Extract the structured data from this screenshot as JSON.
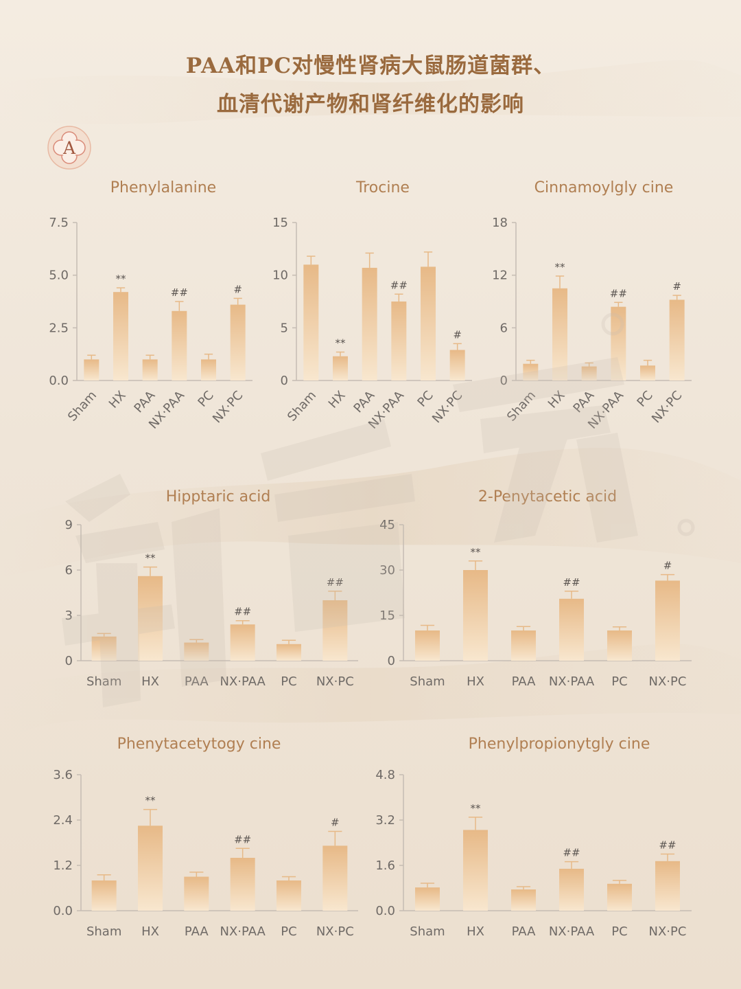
{
  "title": {
    "line1": "PAA和PC对慢性肾病大鼠肠道菌群、",
    "line2": "血清代谢产物和肾纤维化的影响"
  },
  "badge": {
    "letter": "A"
  },
  "colors": {
    "bar_top": "#e7b987",
    "bar_bottom": "#f8e7cf",
    "axis": "#c5bcb3",
    "title": "#9a6a3e",
    "chart_title": "#b07f52"
  },
  "chart_data": [
    {
      "type": "bar",
      "title": "Phenylalanine",
      "categories": [
        "Sham",
        "HX",
        "PAA",
        "NX·PAA",
        "PC",
        "NX·PC"
      ],
      "values": [
        1.0,
        4.2,
        1.0,
        3.3,
        1.0,
        3.6
      ],
      "errors": [
        0.2,
        0.2,
        0.2,
        0.45,
        0.25,
        0.3
      ],
      "significance": [
        "",
        "**",
        "",
        "##",
        "",
        "#"
      ],
      "yticks": [
        "0.0",
        "2.5",
        "5.0",
        "7.5"
      ],
      "ylim": [
        0,
        7.5
      ],
      "rotate_labels": true
    },
    {
      "type": "bar",
      "title": "Trocine",
      "categories": [
        "Sham",
        "HX",
        "PAA",
        "NX·PAA",
        "PC",
        "NX·PC"
      ],
      "values": [
        11.0,
        2.3,
        10.7,
        7.5,
        10.8,
        2.9
      ],
      "errors": [
        0.8,
        0.4,
        1.4,
        0.7,
        1.4,
        0.6
      ],
      "significance": [
        "",
        "**",
        "",
        "##",
        "",
        "#"
      ],
      "yticks": [
        "0",
        "5",
        "10",
        "15"
      ],
      "ylim": [
        0,
        15
      ],
      "rotate_labels": true
    },
    {
      "type": "bar",
      "title": "Cinnamoylgly cine",
      "categories": [
        "Sham",
        "HX",
        "PAA",
        "NX·PAA",
        "PC",
        "NX·PC"
      ],
      "values": [
        1.9,
        10.5,
        1.6,
        8.4,
        1.7,
        9.2
      ],
      "errors": [
        0.4,
        1.4,
        0.4,
        0.5,
        0.6,
        0.5
      ],
      "significance": [
        "",
        "**",
        "",
        "##",
        "",
        "#"
      ],
      "yticks": [
        "0",
        "6",
        "12",
        "18"
      ],
      "ylim": [
        0,
        18
      ],
      "rotate_labels": true
    },
    {
      "type": "bar",
      "title": "Hipptaric acid",
      "categories": [
        "Sham",
        "HX",
        "PAA",
        "NX·PAA",
        "PC",
        "NX·PC"
      ],
      "values": [
        1.6,
        5.6,
        1.2,
        2.4,
        1.1,
        4.0
      ],
      "errors": [
        0.2,
        0.6,
        0.2,
        0.25,
        0.25,
        0.6
      ],
      "significance": [
        "",
        "**",
        "",
        "##",
        "",
        "##"
      ],
      "yticks": [
        "0",
        "3",
        "6",
        "9"
      ],
      "ylim": [
        0,
        9
      ],
      "rotate_labels": false
    },
    {
      "type": "bar",
      "title": "2-Penytacetic acid",
      "categories": [
        "Sham",
        "HX",
        "PAA",
        "NX·PAA",
        "PC",
        "NX·PC"
      ],
      "values": [
        10,
        30,
        10,
        20.5,
        10,
        26.5
      ],
      "errors": [
        1.7,
        3.0,
        1.3,
        2.5,
        1.2,
        2.0
      ],
      "significance": [
        "",
        "**",
        "",
        "##",
        "",
        "#"
      ],
      "yticks": [
        "0",
        "15",
        "30",
        "45"
      ],
      "ylim": [
        0,
        45
      ],
      "rotate_labels": false
    },
    {
      "type": "bar",
      "title": "Phenytacetytogy cine",
      "categories": [
        "Sham",
        "HX",
        "PAA",
        "NX·PAA",
        "PC",
        "NX·PC"
      ],
      "values": [
        0.8,
        2.25,
        0.9,
        1.4,
        0.8,
        1.72
      ],
      "errors": [
        0.15,
        0.43,
        0.12,
        0.25,
        0.1,
        0.38
      ],
      "significance": [
        "",
        "**",
        "",
        "##",
        "",
        "#"
      ],
      "yticks": [
        "0.0",
        "1.2",
        "2.4",
        "3.6"
      ],
      "ylim": [
        0,
        3.6
      ],
      "rotate_labels": false
    },
    {
      "type": "bar",
      "title": "Phenylpropionytgly cine",
      "categories": [
        "Sham",
        "HX",
        "PAA",
        "NX·PAA",
        "PC",
        "NX·PC"
      ],
      "values": [
        0.82,
        2.85,
        0.75,
        1.48,
        0.95,
        1.75
      ],
      "errors": [
        0.15,
        0.45,
        0.1,
        0.25,
        0.12,
        0.25
      ],
      "significance": [
        "",
        "**",
        "",
        "##",
        "",
        "##"
      ],
      "yticks": [
        "0.0",
        "1.6",
        "3.2",
        "4.8"
      ],
      "ylim": [
        0,
        4.8
      ],
      "rotate_labels": false
    }
  ]
}
